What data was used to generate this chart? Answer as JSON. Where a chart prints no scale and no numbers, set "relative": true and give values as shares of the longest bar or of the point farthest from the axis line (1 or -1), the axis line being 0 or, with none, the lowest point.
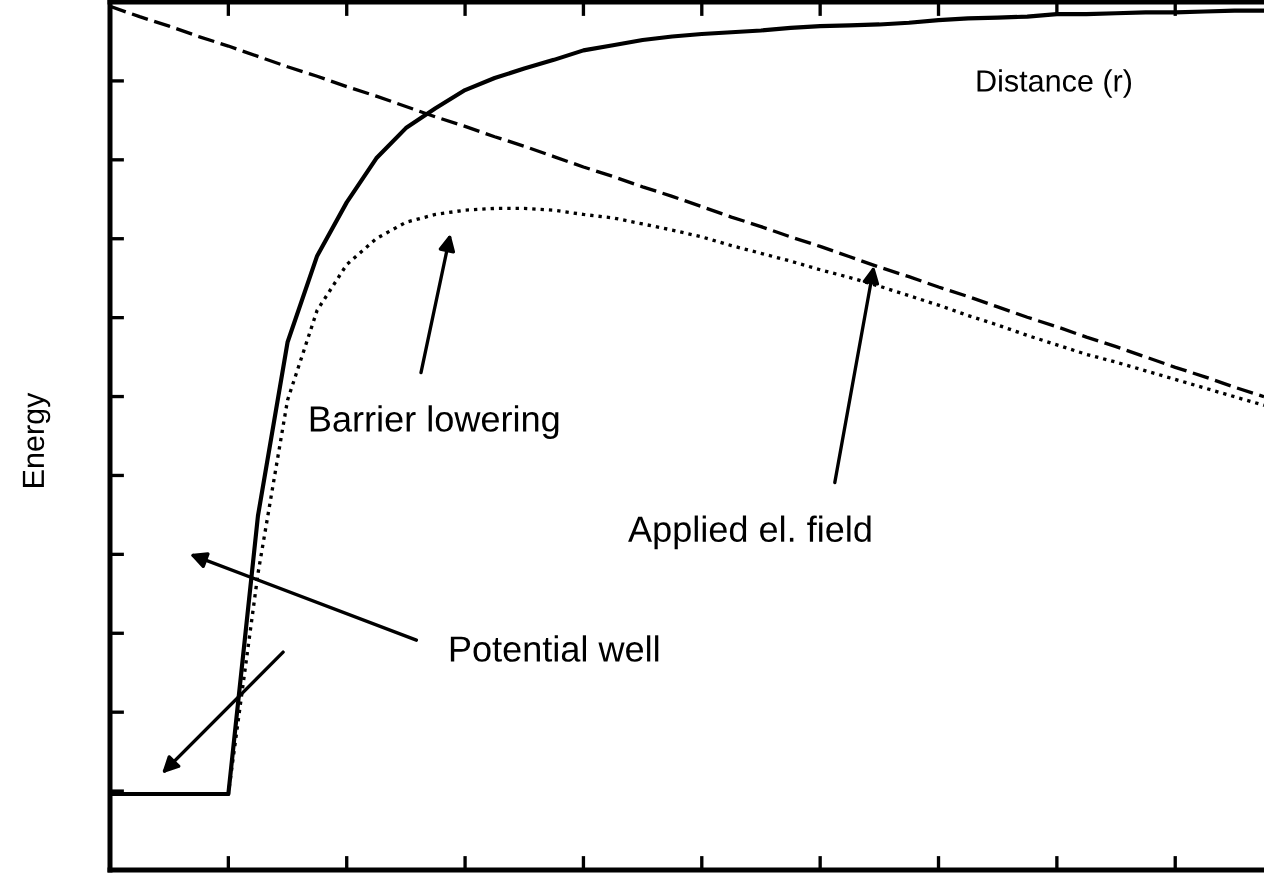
{
  "chart_data": {
    "type": "line",
    "relative": true,
    "xlabel": "Distance (r)",
    "ylabel": "Energy",
    "tick_labels": false,
    "categories": [
      null,
      null,
      null,
      null,
      null,
      null,
      null,
      null,
      null,
      null,
      null,
      null,
      null,
      null,
      null,
      null,
      null,
      null,
      null,
      null,
      null,
      null,
      null,
      null,
      null,
      null,
      null,
      null,
      null,
      null,
      null,
      null,
      null,
      null,
      null,
      null,
      null,
      null,
      null,
      null
    ],
    "series": [
      {
        "color": "#000000",
        "line_style": "solid",
        "values": [
          0.088,
          0.088,
          0.088,
          0.088,
          0.088,
          0.41,
          0.611,
          0.711,
          0.773,
          0.824,
          0.859,
          0.882,
          0.903,
          0.917,
          0.928,
          0.938,
          0.949,
          0.955,
          0.961,
          0.965,
          0.968,
          0.97,
          0.972,
          0.975,
          0.977,
          0.978,
          0.979,
          0.981,
          0.984,
          0.986,
          0.987,
          0.988,
          0.991,
          0.991,
          0.992,
          0.993,
          0.993,
          0.994,
          0.995,
          0.995
        ]
      },
      {
        "color": "#000000",
        "line_style": "dashed",
        "values": [
          1.0,
          0.988,
          0.977,
          0.965,
          0.954,
          0.942,
          0.93,
          0.919,
          0.907,
          0.896,
          0.884,
          0.872,
          0.861,
          0.849,
          0.838,
          0.826,
          0.814,
          0.803,
          0.791,
          0.78,
          0.768,
          0.756,
          0.745,
          0.733,
          0.722,
          0.71,
          0.698,
          0.687,
          0.675,
          0.664,
          0.652,
          0.64,
          0.629,
          0.617,
          0.606,
          0.594,
          0.582,
          0.571,
          0.559,
          0.548
        ]
      },
      {
        "color": "#000000",
        "line_style": "dotted",
        "values": [
          0.088,
          0.088,
          0.088,
          0.088,
          0.088,
          0.343,
          0.544,
          0.648,
          0.701,
          0.731,
          0.75,
          0.759,
          0.764,
          0.766,
          0.766,
          0.764,
          0.759,
          0.755,
          0.748,
          0.741,
          0.733,
          0.723,
          0.714,
          0.705,
          0.695,
          0.686,
          0.676,
          0.665,
          0.654,
          0.642,
          0.631,
          0.619,
          0.608,
          0.597,
          0.588,
          0.578,
          0.568,
          0.558,
          0.548,
          0.538
        ]
      }
    ],
    "annotations": [
      "Barrier lowering",
      "Applied el. field",
      "Potential well"
    ]
  }
}
